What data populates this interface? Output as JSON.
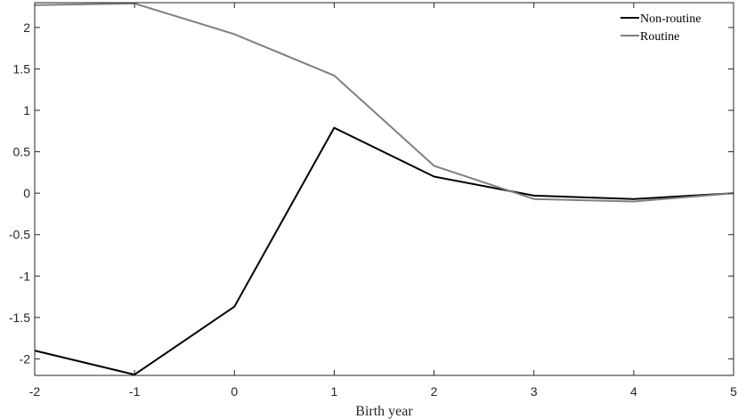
{
  "chart_data": {
    "type": "line",
    "xlabel": "Birth year",
    "ylabel": "",
    "title": "",
    "xlim": [
      -2,
      5
    ],
    "ylim": [
      -2.2,
      2.3
    ],
    "x_ticks": [
      -2,
      -1,
      0,
      1,
      2,
      3,
      4,
      5
    ],
    "y_ticks": [
      -2,
      -1.5,
      -1,
      -0.5,
      0,
      0.5,
      1,
      1.5,
      2
    ],
    "x_tick_labels": [
      "-2",
      "-1",
      "0",
      "1",
      "2",
      "3",
      "4",
      "5"
    ],
    "y_tick_labels": [
      "-2",
      "-1.5",
      "-1",
      "-0.5",
      "0",
      "0.5",
      "1",
      "1.5",
      "2"
    ],
    "x": [
      -2,
      -1,
      0,
      1,
      2,
      3,
      4,
      5
    ],
    "grid": false,
    "legend_position": "top-right",
    "series": [
      {
        "name": "Non-routine",
        "color": "#000000",
        "values": [
          -1.9,
          -2.19,
          -1.37,
          0.79,
          0.2,
          -0.03,
          -0.07,
          0.0
        ]
      },
      {
        "name": "Routine",
        "color": "#808080",
        "values": [
          2.27,
          2.29,
          1.92,
          1.42,
          0.33,
          -0.07,
          -0.1,
          0.0
        ]
      }
    ]
  }
}
